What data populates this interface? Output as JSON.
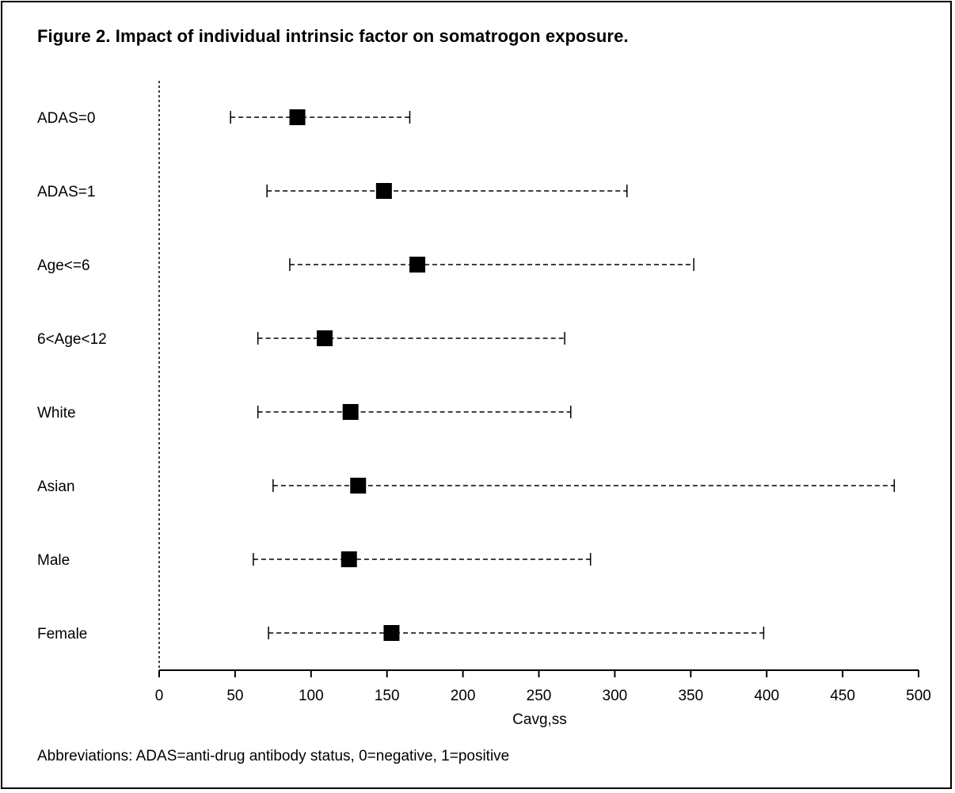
{
  "figure": {
    "title": "Figure 2. Impact of individual intrinsic factor on somatrogon exposure.",
    "footnote": "Abbreviations: ADAS=anti-drug antibody status, 0=negative, 1=positive"
  },
  "chart_data": {
    "type": "forest",
    "title": "Figure 2. Impact of individual intrinsic factor on somatrogon exposure.",
    "xlabel": "Cavg,ss",
    "ylabel": "",
    "xlim": [
      0,
      500
    ],
    "xticks": [
      0,
      50,
      100,
      150,
      200,
      250,
      300,
      350,
      400,
      450,
      500
    ],
    "reference_line": 0,
    "grid": false,
    "legend": "none",
    "colors": {
      "marker": "#000000",
      "whisker": "#000000",
      "axis": "#000000"
    },
    "rows": [
      {
        "label": "ADAS=0",
        "point": 91,
        "low": 47,
        "high": 165
      },
      {
        "label": "ADAS=1",
        "point": 148,
        "low": 71,
        "high": 308
      },
      {
        "label": "Age<=6",
        "point": 170,
        "low": 86,
        "high": 352
      },
      {
        "label": "6<Age<12",
        "point": 109,
        "low": 65,
        "high": 267
      },
      {
        "label": "White",
        "point": 126,
        "low": 65,
        "high": 271
      },
      {
        "label": "Asian",
        "point": 131,
        "low": 75,
        "high": 484
      },
      {
        "label": "Male",
        "point": 125,
        "low": 62,
        "high": 284
      },
      {
        "label": "Female",
        "point": 153,
        "low": 72,
        "high": 398
      }
    ]
  }
}
